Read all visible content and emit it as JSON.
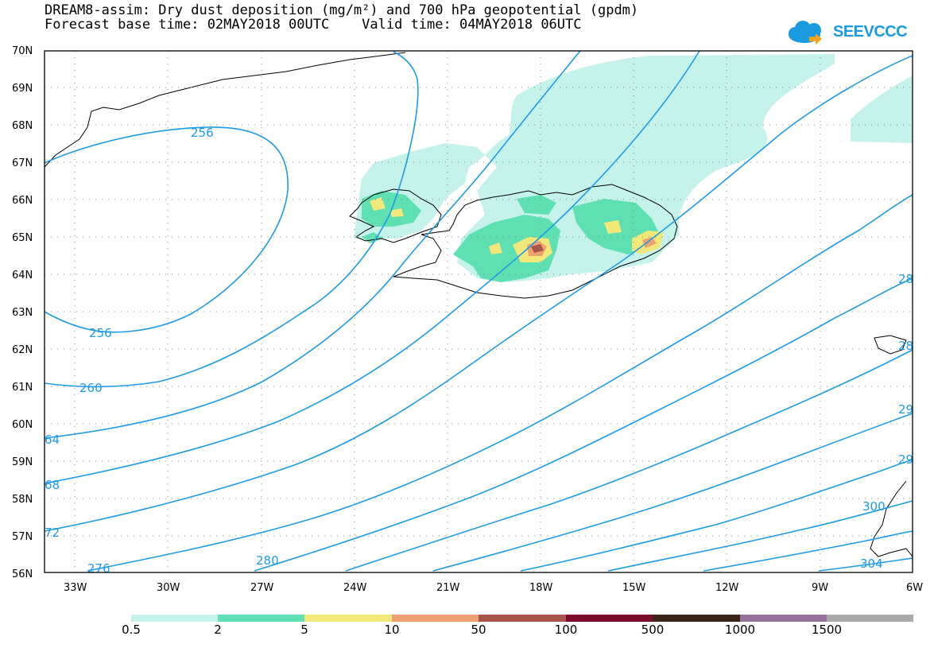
{
  "title": {
    "line1": "DREAM8-assim: Dry dust deposition (mg/m²) and 700 hPa geopotential (gpdm)",
    "line2": "Forecast base time: 02MAY2018 00UTC    Valid time: 04MAY2018 06UTC"
  },
  "logo": {
    "text": "SEEVCCC",
    "icon": "cloud-arrow-icon",
    "color": "#1a9be0"
  },
  "map": {
    "lat_labels": [
      "70N",
      "69N",
      "68N",
      "67N",
      "66N",
      "65N",
      "64N",
      "63N",
      "62N",
      "61N",
      "60N",
      "59N",
      "58N",
      "57N",
      "56N"
    ],
    "lon_labels": [
      "33W",
      "30W",
      "27W",
      "24W",
      "21W",
      "18W",
      "15W",
      "12W",
      "9W",
      "6W"
    ],
    "contour_color": "#1e9be6",
    "contour_labels": [
      "256",
      "256",
      "260",
      "64",
      "68",
      "72",
      "276",
      "280",
      "304",
      "28",
      "28",
      "29",
      "29",
      "300"
    ]
  },
  "colorbar": {
    "labels": [
      "0.5",
      "2",
      "5",
      "10",
      "50",
      "100",
      "500",
      "1000",
      "1500"
    ],
    "colors": [
      "#c6f2ec",
      "#5fe0b3",
      "#f2e87a",
      "#eea070",
      "#a9544b",
      "#7d0a2a",
      "#3a2417",
      "#98709e",
      "#aaaaaa"
    ]
  }
}
